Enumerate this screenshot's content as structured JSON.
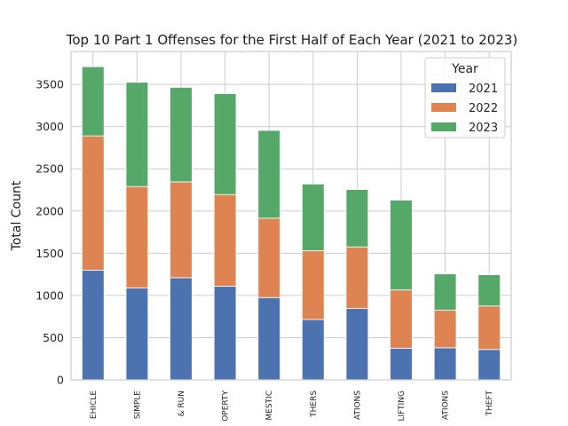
{
  "chart_data": {
    "type": "bar",
    "stacked": true,
    "title": "Top 10 Part 1 Offenses for the First Half of Each Year (2021 to 2023)",
    "xlabel": "",
    "ylabel": "Total Count",
    "ylim": [
      0,
      3890
    ],
    "yticks": [
      0,
      500,
      1000,
      1500,
      2000,
      2500,
      3000,
      3500
    ],
    "grid": true,
    "legend": {
      "title": "Year",
      "position": "top-right"
    },
    "categories": [
      "EHICLE",
      "SIMPLE",
      "& RUN",
      "OPERTY",
      "MESTIC",
      "THERS",
      "ATIONS",
      "LIFTING",
      "ATIONS",
      "THEFT"
    ],
    "series": [
      {
        "name": "2021",
        "color": "#4c72b0",
        "values": [
          1300,
          1090,
          1210,
          1110,
          975,
          715,
          845,
          375,
          380,
          360
        ]
      },
      {
        "name": "2022",
        "color": "#dd8452",
        "values": [
          1590,
          1200,
          1135,
          1085,
          940,
          815,
          730,
          690,
          445,
          515
        ]
      },
      {
        "name": "2023",
        "color": "#55a868",
        "values": [
          820,
          1235,
          1120,
          1195,
          1040,
          790,
          680,
          1065,
          430,
          370
        ]
      }
    ]
  }
}
